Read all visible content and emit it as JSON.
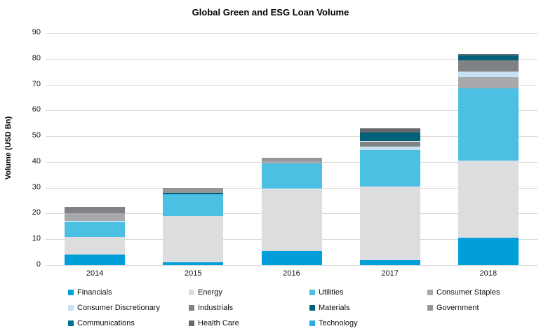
{
  "chart_data": {
    "type": "bar",
    "variant": "stacked",
    "title": "Global Green and ESG Loan Volume",
    "xlabel": "",
    "ylabel": "Volume (USD Bn)",
    "categories": [
      "2014",
      "2015",
      "2016",
      "2017",
      "2018"
    ],
    "ylim": [
      0,
      90
    ],
    "yticks": [
      0,
      10,
      20,
      30,
      40,
      50,
      60,
      70,
      80,
      90
    ],
    "grid": "horizontal",
    "legend_position": "bottom",
    "series": [
      {
        "name": "Financials",
        "color": "#009FDA",
        "values": [
          4,
          1,
          5.5,
          2,
          10.5
        ]
      },
      {
        "name": "Energy",
        "color": "#DCDDDE",
        "values": [
          7,
          18,
          24,
          28.5,
          30
        ]
      },
      {
        "name": "Utilities",
        "color": "#4BC0E2",
        "values": [
          6,
          8.5,
          10,
          14,
          28
        ]
      },
      {
        "name": "Consumer Staples",
        "color": "#A7A9AC",
        "values": [
          3.2,
          0,
          0.7,
          0,
          4.5
        ]
      },
      {
        "name": "Consumer Discretionary",
        "color": "#C5E1F2",
        "values": [
          0,
          0,
          0,
          1.5,
          2
        ]
      },
      {
        "name": "Industrials",
        "color": "#808285",
        "values": [
          2.3,
          0,
          0,
          2,
          4.5
        ]
      },
      {
        "name": "Materials",
        "color": "#01607A",
        "values": [
          0,
          0.5,
          0,
          3.5,
          1.5
        ]
      },
      {
        "name": "Government",
        "color": "#939598",
        "values": [
          0,
          2,
          1.5,
          0,
          0
        ]
      },
      {
        "name": "Communications",
        "color": "#00748C",
        "values": [
          0,
          0,
          0,
          0,
          0.2
        ]
      },
      {
        "name": "Health Care",
        "color": "#66686B",
        "values": [
          0,
          0,
          0,
          1.5,
          0.6
        ]
      },
      {
        "name": "Technology",
        "color": "#29ABE2",
        "values": [
          0,
          0,
          0,
          0,
          0
        ]
      }
    ],
    "totals": [
      22.5,
      30,
      41.7,
      53,
      81.8
    ]
  }
}
